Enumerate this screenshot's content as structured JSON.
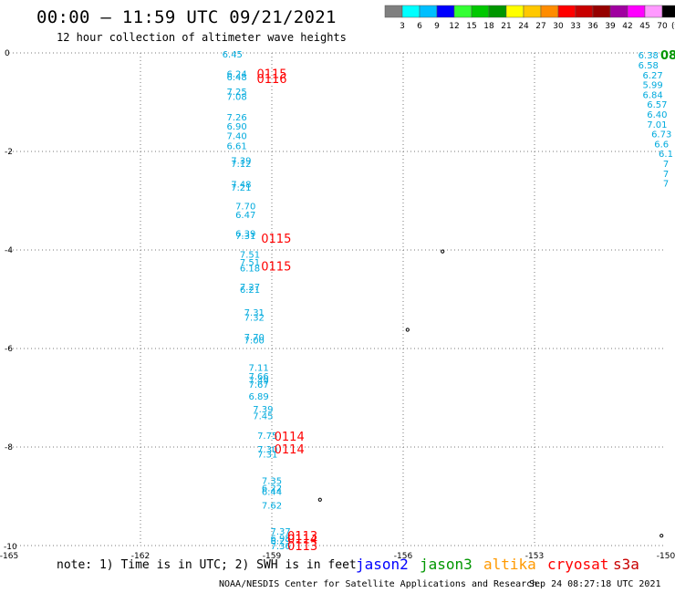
{
  "title": "00:00 – 11:59 UTC 09/21/2021",
  "subtitle": "12 hour collection of altimeter wave heights",
  "legend": {
    "labels": [
      "3",
      "6",
      "9",
      "12",
      "15",
      "18",
      "21",
      "24",
      "27",
      "30",
      "33",
      "36",
      "39",
      "42",
      "45",
      "70"
    ],
    "unit": "(ft)",
    "colors": [
      "#7f7f7f",
      "#00ffff",
      "#00bfff",
      "#0000ff",
      "#33ff33",
      "#00c800",
      "#009600",
      "#ffff00",
      "#ffc800",
      "#ff8c00",
      "#ff0000",
      "#c80000",
      "#960000",
      "#a000a0",
      "#ff00ff",
      "#ff99ff",
      "#000000"
    ]
  },
  "map": {
    "lon_ticks": [
      "-165",
      "-162",
      "-159",
      "-156",
      "-153",
      "-150"
    ],
    "lat_ticks": [
      "0",
      "-2",
      "-4",
      "-6",
      "-8",
      "-10"
    ],
    "colors": {
      "grid": "#7a7a7a",
      "jason3_obs": "#00aadd",
      "pass_label": "#ff0000"
    }
  },
  "observations": [
    {
      "lon": -159.9,
      "lat": -0.02,
      "v": "6.45"
    },
    {
      "lon": -159.8,
      "lat": -0.42,
      "v": "6.24"
    },
    {
      "lon": -159.8,
      "lat": -0.48,
      "v": "6.48"
    },
    {
      "lon": -159.8,
      "lat": -0.78,
      "v": "7.25"
    },
    {
      "lon": -159.8,
      "lat": -0.88,
      "v": "7.08"
    },
    {
      "lon": -159.8,
      "lat": -1.3,
      "v": "7.26"
    },
    {
      "lon": -159.8,
      "lat": -1.48,
      "v": "6.90"
    },
    {
      "lon": -159.8,
      "lat": -1.68,
      "v": "7.40"
    },
    {
      "lon": -159.8,
      "lat": -1.88,
      "v": "6.61"
    },
    {
      "lon": -159.7,
      "lat": -2.18,
      "v": "7.39"
    },
    {
      "lon": -159.7,
      "lat": -2.24,
      "v": "7.12"
    },
    {
      "lon": -159.7,
      "lat": -2.66,
      "v": "7.48"
    },
    {
      "lon": -159.7,
      "lat": -2.72,
      "v": "7.21"
    },
    {
      "lon": -159.6,
      "lat": -3.1,
      "v": "7.70"
    },
    {
      "lon": -159.6,
      "lat": -3.28,
      "v": "6.47"
    },
    {
      "lon": -159.6,
      "lat": -3.66,
      "v": "6.39"
    },
    {
      "lon": -159.6,
      "lat": -3.7,
      "v": "7.31"
    },
    {
      "lon": -159.5,
      "lat": -4.08,
      "v": "7.51"
    },
    {
      "lon": -159.5,
      "lat": -4.24,
      "v": "7.51"
    },
    {
      "lon": -159.5,
      "lat": -4.36,
      "v": "6.18"
    },
    {
      "lon": -159.5,
      "lat": -4.74,
      "v": "7.27"
    },
    {
      "lon": -159.5,
      "lat": -4.8,
      "v": "6.21"
    },
    {
      "lon": -159.4,
      "lat": -5.26,
      "v": "7.31"
    },
    {
      "lon": -159.4,
      "lat": -5.36,
      "v": "7.32"
    },
    {
      "lon": -159.4,
      "lat": -5.76,
      "v": "7.70"
    },
    {
      "lon": -159.4,
      "lat": -5.82,
      "v": "7.00"
    },
    {
      "lon": -159.3,
      "lat": -6.38,
      "v": "7.11"
    },
    {
      "lon": -159.3,
      "lat": -6.56,
      "v": "7.66"
    },
    {
      "lon": -159.3,
      "lat": -6.64,
      "v": "7.49"
    },
    {
      "lon": -159.3,
      "lat": -6.72,
      "v": "7.67"
    },
    {
      "lon": -159.3,
      "lat": -6.96,
      "v": "6.89"
    },
    {
      "lon": -159.2,
      "lat": -7.22,
      "v": "7.39"
    },
    {
      "lon": -159.2,
      "lat": -7.36,
      "v": "7.45"
    },
    {
      "lon": -159.1,
      "lat": -7.76,
      "v": "7.75"
    },
    {
      "lon": -159.1,
      "lat": -8.04,
      "v": "7.30"
    },
    {
      "lon": -159.1,
      "lat": -8.14,
      "v": "7.31"
    },
    {
      "lon": -159.0,
      "lat": -8.68,
      "v": "7.35"
    },
    {
      "lon": -159.0,
      "lat": -8.82,
      "v": "6.22"
    },
    {
      "lon": -159.0,
      "lat": -8.9,
      "v": "6.44"
    },
    {
      "lon": -159.0,
      "lat": -9.18,
      "v": "7.62"
    },
    {
      "lon": -158.8,
      "lat": -9.7,
      "v": "7.37"
    },
    {
      "lon": -158.8,
      "lat": -9.84,
      "v": "6.95"
    },
    {
      "lon": -158.8,
      "lat": -9.9,
      "v": "6.29"
    },
    {
      "lon": -158.8,
      "lat": -10.0,
      "v": "7.36"
    },
    {
      "lon": -150.4,
      "lat": -0.04,
      "v": "6.38"
    },
    {
      "lon": -150.4,
      "lat": -0.24,
      "v": "6.58"
    },
    {
      "lon": -150.3,
      "lat": -0.44,
      "v": "6.27"
    },
    {
      "lon": -150.3,
      "lat": -0.64,
      "v": "5.99"
    },
    {
      "lon": -150.3,
      "lat": -0.84,
      "v": "6.84"
    },
    {
      "lon": -150.2,
      "lat": -1.04,
      "v": "6.57"
    },
    {
      "lon": -150.2,
      "lat": -1.24,
      "v": "6.40"
    },
    {
      "lon": -150.2,
      "lat": -1.44,
      "v": "7.01"
    },
    {
      "lon": -150.1,
      "lat": -1.64,
      "v": "6.73"
    },
    {
      "lon": -150.1,
      "lat": -1.84,
      "v": "6.6"
    },
    {
      "lon": -150.0,
      "lat": -2.04,
      "v": "6.1"
    },
    {
      "lon": -150.0,
      "lat": -2.24,
      "v": "7"
    },
    {
      "lon": -150.0,
      "lat": -2.44,
      "v": "7"
    },
    {
      "lon": -150.0,
      "lat": -2.64,
      "v": "7"
    }
  ],
  "pass_labels": [
    {
      "lon": -159.0,
      "lat": -0.42,
      "t": "0115"
    },
    {
      "lon": -159.0,
      "lat": -0.52,
      "t": "0116"
    },
    {
      "lon": -158.9,
      "lat": -3.76,
      "t": "0115"
    },
    {
      "lon": -158.9,
      "lat": -4.32,
      "t": "0115"
    },
    {
      "lon": -158.6,
      "lat": -7.78,
      "t": "0114"
    },
    {
      "lon": -158.6,
      "lat": -8.04,
      "t": "0114"
    },
    {
      "lon": -158.3,
      "lat": -9.8,
      "t": "0113"
    },
    {
      "lon": -158.3,
      "lat": -9.86,
      "t": "0114"
    },
    {
      "lon": -158.3,
      "lat": -10.0,
      "t": "0113"
    }
  ],
  "edge_label": {
    "lon": -150.0,
    "lat": -0.04,
    "t": "08",
    "color": "#009600"
  },
  "islands": [
    {
      "lon": -155.1,
      "lat": -4.03
    },
    {
      "lon": -155.9,
      "lat": -5.62
    },
    {
      "lon": -157.9,
      "lat": -9.07
    },
    {
      "lon": -150.1,
      "lat": -9.8
    }
  ],
  "note": "note: 1) Time is in UTC; 2) SWH is in feet",
  "satellites": [
    {
      "name": "jason2",
      "color": "#0000ff"
    },
    {
      "name": "jason3",
      "color": "#009600"
    },
    {
      "name": "altika",
      "color": "#ff9900"
    },
    {
      "name": "cryosat",
      "color": "#ff0000"
    },
    {
      "name": "s3a",
      "color": "#c80000"
    }
  ],
  "credit": "NOAA/NESDIS Center for Satellite Applications and Research",
  "timestamp": "Sep 24 08:27:18 UTC 2021"
}
